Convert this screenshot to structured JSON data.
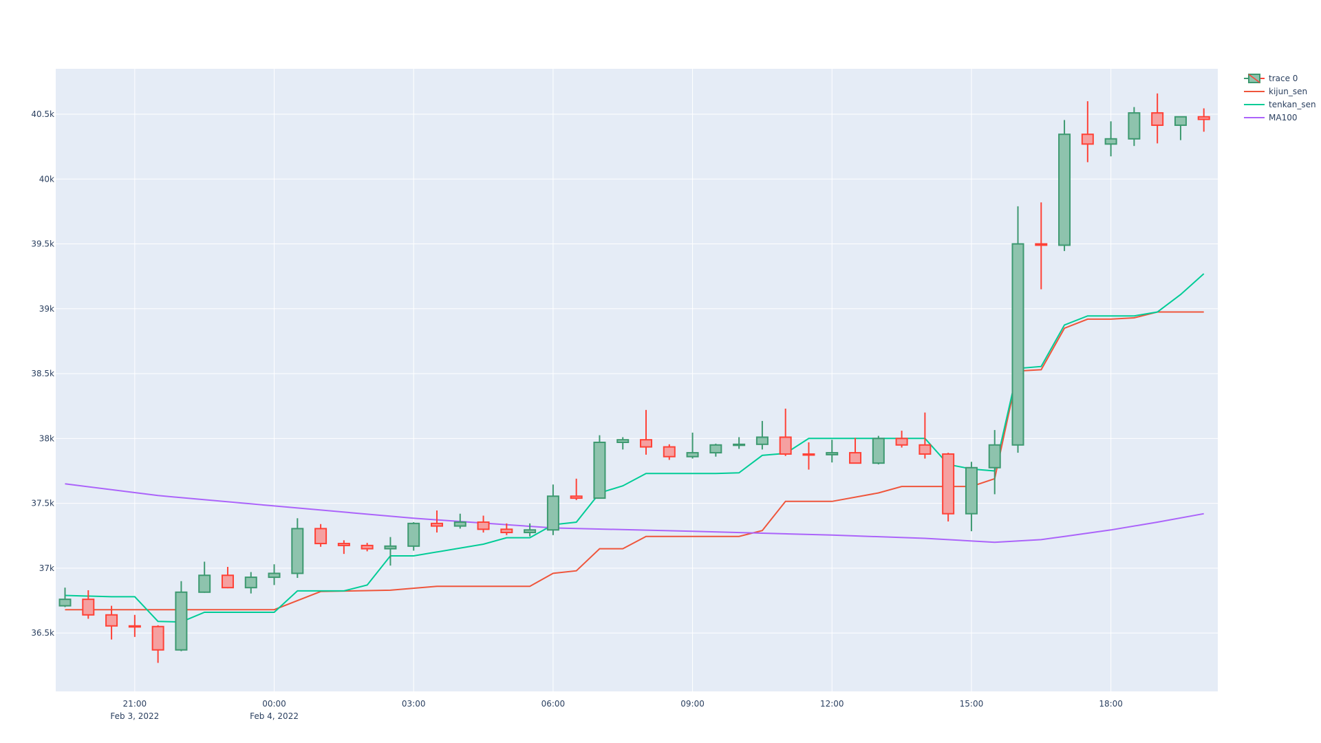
{
  "chart_data": {
    "type": "candlestick",
    "x_start": "2022-02-03T19:30",
    "x_step_minutes": 30,
    "xlim": [
      "2022-02-03T19:18",
      "2022-02-04T20:18"
    ],
    "ylim": [
      36050,
      40850
    ],
    "x_ticks": [
      {
        "time": "2022-02-03T21:00",
        "label": "21:00",
        "sublabel": "Feb 3, 2022"
      },
      {
        "time": "2022-02-04T00:00",
        "label": "00:00",
        "sublabel": "Feb 4, 2022"
      },
      {
        "time": "2022-02-04T03:00",
        "label": "03:00",
        "sublabel": ""
      },
      {
        "time": "2022-02-04T06:00",
        "label": "06:00",
        "sublabel": ""
      },
      {
        "time": "2022-02-04T09:00",
        "label": "09:00",
        "sublabel": ""
      },
      {
        "time": "2022-02-04T12:00",
        "label": "12:00",
        "sublabel": ""
      },
      {
        "time": "2022-02-04T15:00",
        "label": "15:00",
        "sublabel": ""
      },
      {
        "time": "2022-02-04T18:00",
        "label": "18:00",
        "sublabel": ""
      }
    ],
    "y_ticks": [
      {
        "value": 36500,
        "label": "36.5k"
      },
      {
        "value": 37000,
        "label": "37k"
      },
      {
        "value": 37500,
        "label": "37.5k"
      },
      {
        "value": 38000,
        "label": "38k"
      },
      {
        "value": 38500,
        "label": "38.5k"
      },
      {
        "value": 39000,
        "label": "39k"
      },
      {
        "value": 39500,
        "label": "39.5k"
      },
      {
        "value": 40000,
        "label": "40k"
      },
      {
        "value": 40500,
        "label": "40.5k"
      }
    ],
    "grid": true,
    "legend_position": "top-right",
    "colors": {
      "increasing": "#3D9970",
      "increasing_fill": "#8ec3ad",
      "decreasing": "#FF4136",
      "decreasing_fill": "#f5a0a0",
      "kijun_sen": "#EF553B",
      "tenkan_sen": "#00CC96",
      "MA100": "#AB63FA",
      "plot_bg": "#E5ECF6",
      "grid": "#ffffff",
      "text": "#2a3f5f"
    },
    "candles": {
      "name": "trace 0",
      "open": [
        36710,
        36760,
        36640,
        36555,
        36550,
        36370,
        36815,
        36945,
        36850,
        36930,
        36960,
        37305,
        37190,
        37175,
        37150,
        37170,
        37345,
        37325,
        37355,
        37300,
        37275,
        37295,
        37555,
        37540,
        37970,
        37990,
        37935,
        37860,
        37890,
        37950,
        37955,
        38010,
        37880,
        37875,
        37890,
        37810,
        38000,
        37950,
        37880,
        37420,
        37775,
        37950,
        39500,
        39490,
        40345,
        40270,
        40310,
        40510,
        40415,
        40480
      ],
      "high": [
        36850,
        36830,
        36710,
        36640,
        36560,
        36900,
        37050,
        37010,
        36970,
        37030,
        37385,
        37340,
        37215,
        37195,
        37240,
        37355,
        37445,
        37420,
        37405,
        37345,
        37345,
        37645,
        37690,
        38025,
        38010,
        38220,
        37955,
        38045,
        37960,
        38010,
        38135,
        38230,
        37970,
        37990,
        38005,
        38020,
        38060,
        38200,
        37890,
        37820,
        38065,
        39790,
        39820,
        40455,
        40600,
        40445,
        40555,
        40660,
        40475,
        40545
      ],
      "low": [
        36700,
        36610,
        36450,
        36470,
        36270,
        36360,
        36810,
        36845,
        36805,
        36870,
        36925,
        37165,
        37110,
        37130,
        37020,
        37135,
        37275,
        37305,
        37275,
        37255,
        37245,
        37255,
        37525,
        37540,
        37915,
        37875,
        37835,
        37845,
        37860,
        37920,
        37915,
        37865,
        37760,
        37815,
        37810,
        37800,
        37930,
        37845,
        37360,
        37285,
        37570,
        37890,
        39150,
        39445,
        40130,
        40175,
        40255,
        40275,
        40300,
        40365
      ],
      "close": [
        36760,
        36640,
        36555,
        36550,
        36370,
        36815,
        36945,
        36850,
        36930,
        36960,
        37305,
        37190,
        37175,
        37150,
        37170,
        37345,
        37325,
        37355,
        37300,
        37275,
        37295,
        37555,
        37540,
        37970,
        37990,
        37935,
        37860,
        37890,
        37950,
        37955,
        38010,
        37880,
        37875,
        37890,
        37810,
        38000,
        37950,
        37880,
        37420,
        37775,
        37950,
        39500,
        39490,
        40345,
        40270,
        40310,
        40510,
        40415,
        40480,
        40460
      ]
    },
    "series": [
      {
        "name": "kijun_sen",
        "x": [
          "2022-02-03T19:30",
          "2022-02-04T00:00",
          "2022-02-04T01:00",
          "2022-02-04T02:30",
          "2022-02-04T03:30",
          "2022-02-04T05:30",
          "2022-02-04T06:00",
          "2022-02-04T06:30",
          "2022-02-04T07:00",
          "2022-02-04T07:30",
          "2022-02-04T08:00",
          "2022-02-04T10:00",
          "2022-02-04T10:30",
          "2022-02-04T11:00",
          "2022-02-04T12:00",
          "2022-02-04T13:00",
          "2022-02-04T13:30",
          "2022-02-04T15:00",
          "2022-02-04T15:30",
          "2022-02-04T16:00",
          "2022-02-04T16:30",
          "2022-02-04T17:00",
          "2022-02-04T17:30",
          "2022-02-04T18:00",
          "2022-02-04T18:30",
          "2022-02-04T19:00",
          "2022-02-04T20:00"
        ],
        "values": [
          36680,
          36680,
          36820,
          36830,
          36860,
          36860,
          36960,
          36980,
          37150,
          37150,
          37245,
          37245,
          37290,
          37515,
          37515,
          37580,
          37630,
          37630,
          37690,
          38520,
          38530,
          38850,
          38920,
          38920,
          38930,
          38975,
          38975
        ]
      },
      {
        "name": "tenkan_sen",
        "x": [
          "2022-02-03T19:30",
          "2022-02-03T20:30",
          "2022-02-03T21:00",
          "2022-02-03T21:30",
          "2022-02-03T22:00",
          "2022-02-03T22:30",
          "2022-02-04T00:00",
          "2022-02-04T00:30",
          "2022-02-04T01:30",
          "2022-02-04T02:00",
          "2022-02-04T02:30",
          "2022-02-04T03:00",
          "2022-02-04T04:30",
          "2022-02-04T05:00",
          "2022-02-04T05:30",
          "2022-02-04T06:00",
          "2022-02-04T06:30",
          "2022-02-04T07:00",
          "2022-02-04T07:30",
          "2022-02-04T08:00",
          "2022-02-04T09:30",
          "2022-02-04T10:00",
          "2022-02-04T10:30",
          "2022-02-04T11:00",
          "2022-02-04T11:30",
          "2022-02-04T14:00",
          "2022-02-04T14:30",
          "2022-02-04T15:00",
          "2022-02-04T15:30",
          "2022-02-04T16:00",
          "2022-02-04T16:30",
          "2022-02-04T17:00",
          "2022-02-04T17:30",
          "2022-02-04T18:30",
          "2022-02-04T19:00",
          "2022-02-04T19:30",
          "2022-02-04T20:00"
        ],
        "values": [
          36790,
          36780,
          36780,
          36590,
          36585,
          36660,
          36660,
          36825,
          36825,
          36870,
          37095,
          37095,
          37185,
          37235,
          37235,
          37335,
          37355,
          37580,
          37635,
          37730,
          37730,
          37735,
          37870,
          37885,
          38000,
          38000,
          37800,
          37765,
          37750,
          38540,
          38555,
          38875,
          38945,
          38945,
          38975,
          39110,
          39270
        ]
      },
      {
        "name": "MA100",
        "x": [
          "2022-02-03T19:30",
          "2022-02-03T21:30",
          "2022-02-04T00:00",
          "2022-02-04T03:00",
          "2022-02-04T06:00",
          "2022-02-04T09:00",
          "2022-02-04T12:00",
          "2022-02-04T14:00",
          "2022-02-04T15:30",
          "2022-02-04T16:30",
          "2022-02-04T17:00",
          "2022-02-04T18:00",
          "2022-02-04T19:00",
          "2022-02-04T20:00"
        ],
        "values": [
          37650,
          37560,
          37480,
          37385,
          37310,
          37285,
          37255,
          37230,
          37200,
          37220,
          37245,
          37295,
          37355,
          37420
        ]
      }
    ],
    "legend": [
      {
        "name": "trace 0",
        "kind": "candle"
      },
      {
        "name": "kijun_sen",
        "kind": "line"
      },
      {
        "name": "tenkan_sen",
        "kind": "line"
      },
      {
        "name": "MA100",
        "kind": "line"
      }
    ]
  }
}
